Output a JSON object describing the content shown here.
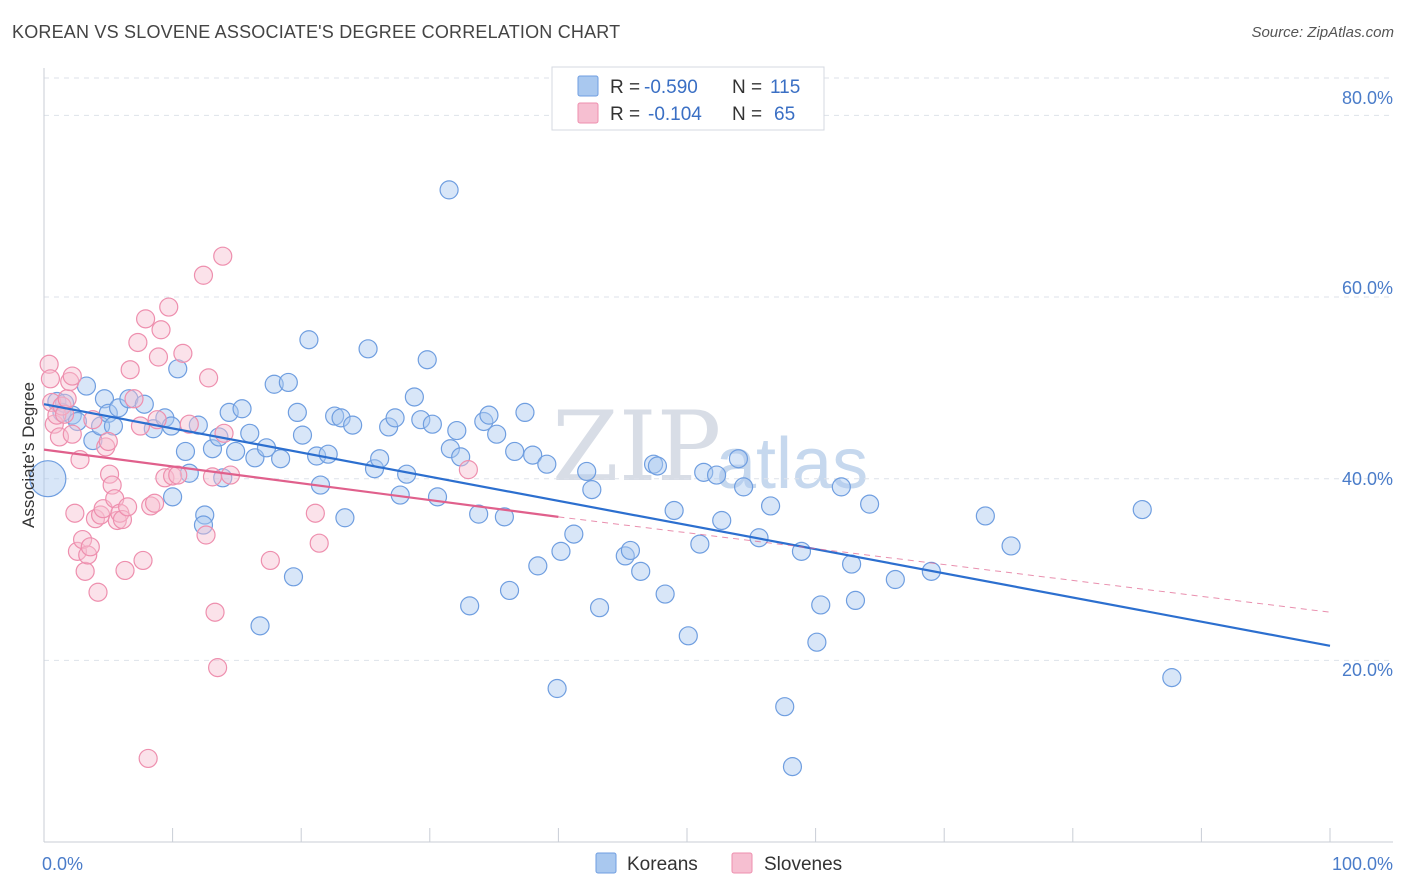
{
  "header": {
    "title": "KOREAN VS SLOVENE ASSOCIATE'S DEGREE CORRELATION CHART",
    "source": "Source: ZipAtlas.com"
  },
  "watermark": {
    "zip": "ZIP",
    "atlas": "atlas"
  },
  "colors": {
    "korean": "#6f9ee0",
    "korean_fill": "#a9c8ef",
    "korean_line": "#2c6fcf",
    "slovene": "#ee8fae",
    "slovene_fill": "#f6bfd1",
    "slovene_line": "#e0608c",
    "tick": "#4a7cc9",
    "grid": "#dde2ea"
  },
  "legend": {
    "rows": [
      {
        "r_label": "R =",
        "r_value": "-0.590",
        "n_label": "N =",
        "n_value": "115"
      },
      {
        "r_label": "R =",
        "r_value": "-0.104",
        "n_label": "N =",
        "n_value": "65"
      }
    ]
  },
  "bottom_legend": [
    "Koreans",
    "Slovenes"
  ],
  "chart_data": {
    "type": "scatter",
    "title": "KOREAN VS SLOVENE ASSOCIATE'S DEGREE CORRELATION CHART",
    "xlabel": "",
    "ylabel": "Associate's Degree",
    "xlim": [
      0,
      100
    ],
    "ylim": [
      0,
      85
    ],
    "x_tick_labels": [
      "0.0%",
      "100.0%"
    ],
    "y_ticks": [
      20,
      40,
      60,
      80
    ],
    "y_tick_labels": [
      "20.0%",
      "40.0%",
      "60.0%",
      "80.0%"
    ],
    "grid": true,
    "legend_position": "top-center",
    "series": [
      {
        "name": "Koreans",
        "r": -0.59,
        "n": 115,
        "trend": {
          "x0": 0,
          "y0": 48.2,
          "x1": 100,
          "y1": 21.6
        },
        "points": [
          [
            0.3,
            40.0
          ],
          [
            1.0,
            48.5
          ],
          [
            1.4,
            47.3
          ],
          [
            1.6,
            48.3
          ],
          [
            2.2,
            47.0
          ],
          [
            2.6,
            46.3
          ],
          [
            3.3,
            50.2
          ],
          [
            3.8,
            44.2
          ],
          [
            4.4,
            45.8
          ],
          [
            4.7,
            48.8
          ],
          [
            5.0,
            47.2
          ],
          [
            5.4,
            45.8
          ],
          [
            5.8,
            47.8
          ],
          [
            6.6,
            48.8
          ],
          [
            7.8,
            48.2
          ],
          [
            8.5,
            45.5
          ],
          [
            9.4,
            46.7
          ],
          [
            9.9,
            45.8
          ],
          [
            10.0,
            38.0
          ],
          [
            10.4,
            52.1
          ],
          [
            11.0,
            43.0
          ],
          [
            11.3,
            40.6
          ],
          [
            12.0,
            45.9
          ],
          [
            12.5,
            36.0
          ],
          [
            12.4,
            34.9
          ],
          [
            13.1,
            43.3
          ],
          [
            13.6,
            44.6
          ],
          [
            13.9,
            40.1
          ],
          [
            14.4,
            47.3
          ],
          [
            14.9,
            43.0
          ],
          [
            15.4,
            47.7
          ],
          [
            16.0,
            45.0
          ],
          [
            16.4,
            42.3
          ],
          [
            16.8,
            23.8
          ],
          [
            17.3,
            43.4
          ],
          [
            17.9,
            50.4
          ],
          [
            18.4,
            42.2
          ],
          [
            19.0,
            50.6
          ],
          [
            19.4,
            29.2
          ],
          [
            19.7,
            47.3
          ],
          [
            20.1,
            44.8
          ],
          [
            20.6,
            55.3
          ],
          [
            21.2,
            42.5
          ],
          [
            21.5,
            39.3
          ],
          [
            22.1,
            42.7
          ],
          [
            22.6,
            46.9
          ],
          [
            23.1,
            46.7
          ],
          [
            23.4,
            35.7
          ],
          [
            24.0,
            45.9
          ],
          [
            25.2,
            54.3
          ],
          [
            25.7,
            41.1
          ],
          [
            26.1,
            42.2
          ],
          [
            26.8,
            45.7
          ],
          [
            27.3,
            46.7
          ],
          [
            27.7,
            38.2
          ],
          [
            28.2,
            40.5
          ],
          [
            28.8,
            49.0
          ],
          [
            29.3,
            46.5
          ],
          [
            29.8,
            53.1
          ],
          [
            30.2,
            46.0
          ],
          [
            30.6,
            38.0
          ],
          [
            31.6,
            43.3
          ],
          [
            32.1,
            45.3
          ],
          [
            32.4,
            42.4
          ],
          [
            33.1,
            26.0
          ],
          [
            33.8,
            36.1
          ],
          [
            34.2,
            46.3
          ],
          [
            34.6,
            47.0
          ],
          [
            35.2,
            44.9
          ],
          [
            35.8,
            35.8
          ],
          [
            36.2,
            27.7
          ],
          [
            36.6,
            43.0
          ],
          [
            37.4,
            47.3
          ],
          [
            38.0,
            42.6
          ],
          [
            38.4,
            30.4
          ],
          [
            39.1,
            41.6
          ],
          [
            39.9,
            16.9
          ],
          [
            40.2,
            32.0
          ],
          [
            41.2,
            33.9
          ],
          [
            42.2,
            40.8
          ],
          [
            42.6,
            38.8
          ],
          [
            43.2,
            25.8
          ],
          [
            45.2,
            31.5
          ],
          [
            45.6,
            32.1
          ],
          [
            46.4,
            29.8
          ],
          [
            47.4,
            41.6
          ],
          [
            47.7,
            41.4
          ],
          [
            48.3,
            27.3
          ],
          [
            49.0,
            36.5
          ],
          [
            50.1,
            22.7
          ],
          [
            51.3,
            40.7
          ],
          [
            51.0,
            32.8
          ],
          [
            52.3,
            40.4
          ],
          [
            52.7,
            35.4
          ],
          [
            54.0,
            42.2
          ],
          [
            54.4,
            39.1
          ],
          [
            55.6,
            33.5
          ],
          [
            56.5,
            37.0
          ],
          [
            57.6,
            14.9
          ],
          [
            58.9,
            32.0
          ],
          [
            60.1,
            22.0
          ],
          [
            60.4,
            26.1
          ],
          [
            62.0,
            39.1
          ],
          [
            62.8,
            30.6
          ],
          [
            63.1,
            26.6
          ],
          [
            64.2,
            37.2
          ],
          [
            66.2,
            28.9
          ],
          [
            69.0,
            29.8
          ],
          [
            73.2,
            35.9
          ],
          [
            75.2,
            32.6
          ],
          [
            85.4,
            36.6
          ],
          [
            87.7,
            18.1
          ],
          [
            31.5,
            71.8
          ],
          [
            58.2,
            8.3
          ]
        ]
      },
      {
        "name": "Slovenes",
        "r": -0.104,
        "n": 65,
        "trend": {
          "x0": 0,
          "y0": 43.2,
          "x1": 40,
          "y1": 35.8
        },
        "trend_dashed": {
          "x0": 40,
          "y0": 35.8,
          "x1": 100,
          "y1": 25.3
        },
        "points": [
          [
            0.4,
            52.6
          ],
          [
            0.5,
            51.0
          ],
          [
            0.6,
            48.4
          ],
          [
            0.8,
            46.0
          ],
          [
            1.0,
            47.0
          ],
          [
            1.2,
            44.6
          ],
          [
            1.4,
            48.0
          ],
          [
            1.6,
            47.1
          ],
          [
            1.8,
            48.8
          ],
          [
            2.0,
            50.7
          ],
          [
            2.2,
            51.3
          ],
          [
            2.2,
            44.9
          ],
          [
            2.4,
            36.2
          ],
          [
            2.6,
            32.0
          ],
          [
            2.8,
            42.1
          ],
          [
            3.0,
            33.3
          ],
          [
            3.2,
            29.8
          ],
          [
            3.4,
            31.6
          ],
          [
            3.6,
            32.5
          ],
          [
            3.8,
            46.5
          ],
          [
            4.0,
            35.6
          ],
          [
            4.2,
            27.5
          ],
          [
            4.4,
            36.0
          ],
          [
            4.6,
            36.7
          ],
          [
            4.8,
            43.5
          ],
          [
            5.0,
            44.1
          ],
          [
            5.1,
            40.5
          ],
          [
            5.3,
            39.3
          ],
          [
            5.5,
            37.8
          ],
          [
            5.7,
            35.4
          ],
          [
            5.9,
            36.2
          ],
          [
            6.1,
            35.5
          ],
          [
            6.3,
            29.9
          ],
          [
            6.5,
            36.9
          ],
          [
            6.7,
            52.0
          ],
          [
            7.0,
            48.8
          ],
          [
            7.3,
            55.0
          ],
          [
            7.5,
            45.8
          ],
          [
            7.7,
            31.0
          ],
          [
            7.9,
            57.6
          ],
          [
            8.1,
            9.2
          ],
          [
            8.3,
            37.0
          ],
          [
            8.6,
            37.3
          ],
          [
            8.8,
            46.5
          ],
          [
            8.9,
            53.4
          ],
          [
            9.1,
            56.4
          ],
          [
            9.4,
            40.1
          ],
          [
            9.7,
            58.9
          ],
          [
            10.0,
            40.3
          ],
          [
            10.4,
            40.4
          ],
          [
            10.8,
            53.8
          ],
          [
            11.3,
            46.0
          ],
          [
            12.6,
            33.8
          ],
          [
            12.4,
            62.4
          ],
          [
            12.8,
            51.1
          ],
          [
            13.3,
            25.3
          ],
          [
            13.5,
            19.2
          ],
          [
            13.9,
            64.5
          ],
          [
            14.0,
            45.0
          ],
          [
            14.5,
            40.4
          ],
          [
            17.6,
            31.0
          ],
          [
            21.1,
            36.2
          ],
          [
            21.4,
            32.9
          ],
          [
            33.0,
            41.0
          ],
          [
            13.1,
            40.2
          ]
        ]
      }
    ]
  }
}
